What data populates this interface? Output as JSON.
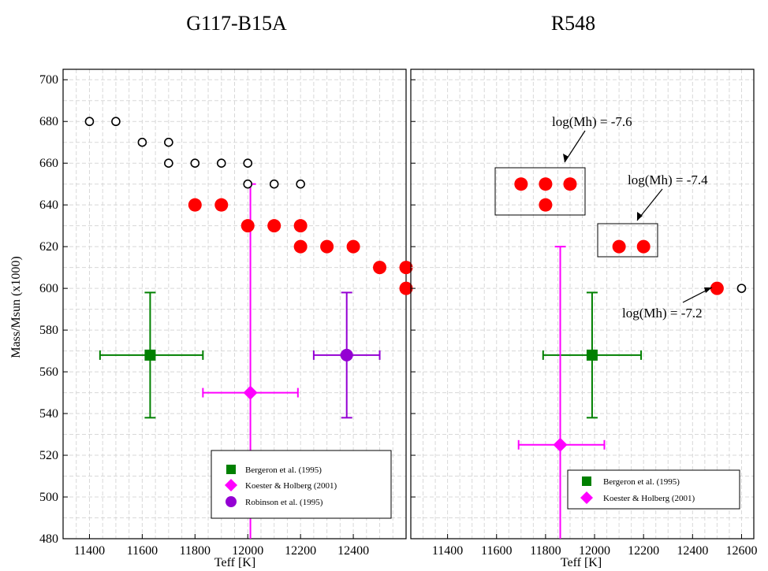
{
  "chart_data": [
    {
      "type": "scatter",
      "title": "G117-B15A",
      "xlabel": "Teff [K]",
      "ylabel": "Mass/Msun (x1000)",
      "xlim": [
        11300,
        12600
      ],
      "ylim": [
        480,
        705
      ],
      "xticks": [
        11400,
        11600,
        11800,
        12000,
        12200,
        12400
      ],
      "yticks": [
        480,
        500,
        520,
        540,
        560,
        580,
        600,
        620,
        640,
        660,
        680,
        700
      ],
      "grid": true,
      "legend_position": "bottom-right",
      "models_open": [
        {
          "x": 11400,
          "y": 680
        },
        {
          "x": 11500,
          "y": 680
        },
        {
          "x": 11600,
          "y": 670
        },
        {
          "x": 11700,
          "y": 670
        },
        {
          "x": 11700,
          "y": 660
        },
        {
          "x": 11800,
          "y": 660
        },
        {
          "x": 11900,
          "y": 660
        },
        {
          "x": 12000,
          "y": 660
        },
        {
          "x": 12000,
          "y": 650
        },
        {
          "x": 12100,
          "y": 650
        },
        {
          "x": 12200,
          "y": 650
        }
      ],
      "models_filled": [
        {
          "x": 11800,
          "y": 640
        },
        {
          "x": 11900,
          "y": 640
        },
        {
          "x": 12000,
          "y": 630
        },
        {
          "x": 12100,
          "y": 630
        },
        {
          "x": 12200,
          "y": 630
        },
        {
          "x": 12200,
          "y": 620
        },
        {
          "x": 12300,
          "y": 620
        },
        {
          "x": 12400,
          "y": 620
        },
        {
          "x": 12500,
          "y": 610
        },
        {
          "x": 12600,
          "y": 610
        },
        {
          "x": 12600,
          "y": 600
        }
      ],
      "series": [
        {
          "name": "Bergeron et al. (1995)",
          "marker": "square",
          "color": "#008000",
          "x": 11630,
          "y": 568,
          "xerr": [
            11440,
            11830
          ],
          "yerr": [
            538,
            598
          ]
        },
        {
          "name": "Koester & Holberg (2001)",
          "marker": "diamond",
          "color": "#ff00ff",
          "x": 12010,
          "y": 550,
          "xerr": [
            11830,
            12190
          ],
          "yerr": [
            480,
            650
          ]
        },
        {
          "name": "Robinson et al. (1995)",
          "marker": "circle",
          "color": "#9400d3",
          "x": 12375,
          "y": 568,
          "xerr": [
            12250,
            12500
          ],
          "yerr": [
            538,
            598
          ]
        }
      ]
    },
    {
      "type": "scatter",
      "title": "R548",
      "xlabel": "Teff [K]",
      "ylabel": "",
      "xlim": [
        11250,
        12650
      ],
      "ylim": [
        480,
        705
      ],
      "xticks": [
        11400,
        11600,
        11800,
        12000,
        12200,
        12400,
        12600
      ],
      "grid": true,
      "legend_position": "bottom-right",
      "models_open": [
        {
          "x": 12600,
          "y": 600
        }
      ],
      "models_filled": [
        {
          "x": 11700,
          "y": 650
        },
        {
          "x": 11800,
          "y": 650
        },
        {
          "x": 11900,
          "y": 650
        },
        {
          "x": 11800,
          "y": 640
        },
        {
          "x": 12100,
          "y": 620
        },
        {
          "x": 12200,
          "y": 620
        },
        {
          "x": 12500,
          "y": 600
        }
      ],
      "annotations": [
        {
          "text": "log(Mh) = -7.6",
          "x": 11850,
          "y": 664
        },
        {
          "text": "log(Mh) = -7.4",
          "x": 12250,
          "y": 642
        },
        {
          "text": "log(Mh) = -7.2",
          "x": 12330,
          "y": 588
        }
      ],
      "series": [
        {
          "name": "Bergeron et al. (1995)",
          "marker": "square",
          "color": "#008000",
          "x": 11990,
          "y": 568,
          "xerr": [
            11790,
            12190
          ],
          "yerr": [
            538,
            598
          ]
        },
        {
          "name": "Koester & Holberg (2001)",
          "marker": "diamond",
          "color": "#ff00ff",
          "x": 11860,
          "y": 525,
          "xerr": [
            11690,
            12040
          ],
          "yerr": [
            480,
            620
          ]
        }
      ]
    }
  ],
  "colors": {
    "model_filled": "#ff0000",
    "model_open": "#000000"
  }
}
